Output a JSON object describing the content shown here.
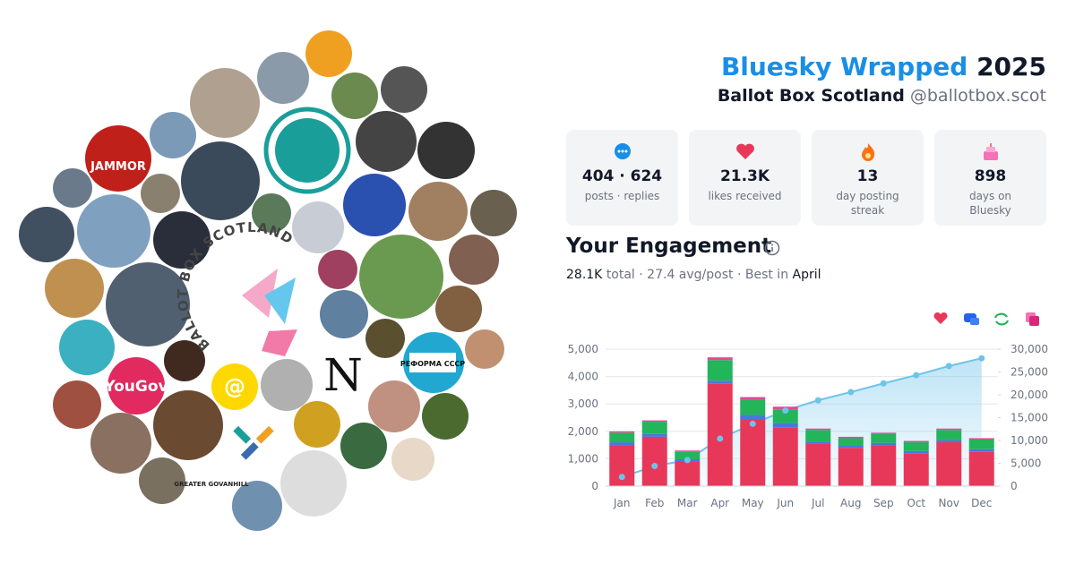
{
  "header": {
    "title": "Bluesky Wrapped",
    "year": "2025",
    "name": "Ballot Box Scotland",
    "handle": "@ballotbox.scot"
  },
  "stats": [
    {
      "value": "404 · 624",
      "label": "posts · replies"
    },
    {
      "value": "21.3K",
      "label": "likes received"
    },
    {
      "value": "13",
      "label": "day posting streak"
    },
    {
      "value": "898",
      "label": "days on Bluesky"
    }
  ],
  "engagement": {
    "title": "Your Engagement",
    "total": "28.1K",
    "summary": "total · 27.4 avg/post · Best in",
    "best": "April"
  },
  "collage": {
    "labels": [
      "BALLOT BOX SCOTLAND",
      "YouGov",
      "@",
      "N",
      "РЕФОРМА СССР",
      "GREATER GOVANHILL",
      "JAMMOR"
    ]
  },
  "chart_data": {
    "type": "bar",
    "stacked": true,
    "grid": true,
    "categories": [
      "Jan",
      "Feb",
      "Mar",
      "Apr",
      "May",
      "Jun",
      "Jul",
      "Aug",
      "Sep",
      "Oct",
      "Nov",
      "Dec"
    ],
    "series": [
      {
        "color": "#e8385a",
        "values": [
          1500,
          1800,
          900,
          3750,
          2450,
          2150,
          1550,
          1400,
          1500,
          1200,
          1600,
          1250
        ]
      },
      {
        "color": "#4a78d8",
        "values": [
          100,
          100,
          80,
          100,
          150,
          150,
          80,
          70,
          80,
          80,
          80,
          100
        ]
      },
      {
        "color": "#22b55a",
        "values": [
          350,
          450,
          270,
          750,
          550,
          500,
          420,
          280,
          320,
          320,
          370,
          350
        ]
      },
      {
        "color": "#e0489a",
        "values": [
          50,
          50,
          50,
          100,
          100,
          100,
          50,
          50,
          50,
          50,
          50,
          50
        ]
      },
      {
        "color": "#6ec3ea",
        "type": "line",
        "axis": "y2",
        "values": [
          2000,
          4400,
          5700,
          10400,
          13650,
          16550,
          18800,
          20600,
          22500,
          24300,
          26300,
          28000
        ]
      }
    ],
    "ylim": [
      0,
      5000
    ],
    "yticks": [
      0,
      {
        "value": 1000,
        "label": "1,000"
      },
      {
        "value": 2000,
        "label": "2,000"
      },
      {
        "value": 3000,
        "label": "3,000"
      },
      {
        "value": 4000,
        "label": "4,000"
      },
      {
        "value": 5000,
        "label": "5,000"
      }
    ],
    "y2lim": [
      0,
      30000
    ],
    "y2ticks": [
      0,
      {
        "value": 5000,
        "label": "5,000"
      },
      {
        "value": 10000,
        "label": "10,000"
      },
      {
        "value": 15000,
        "label": "15,000"
      },
      {
        "value": 20000,
        "label": "20,000"
      },
      {
        "value": 25000,
        "label": "25,000"
      },
      {
        "value": 30000,
        "label": "30,000"
      }
    ]
  }
}
